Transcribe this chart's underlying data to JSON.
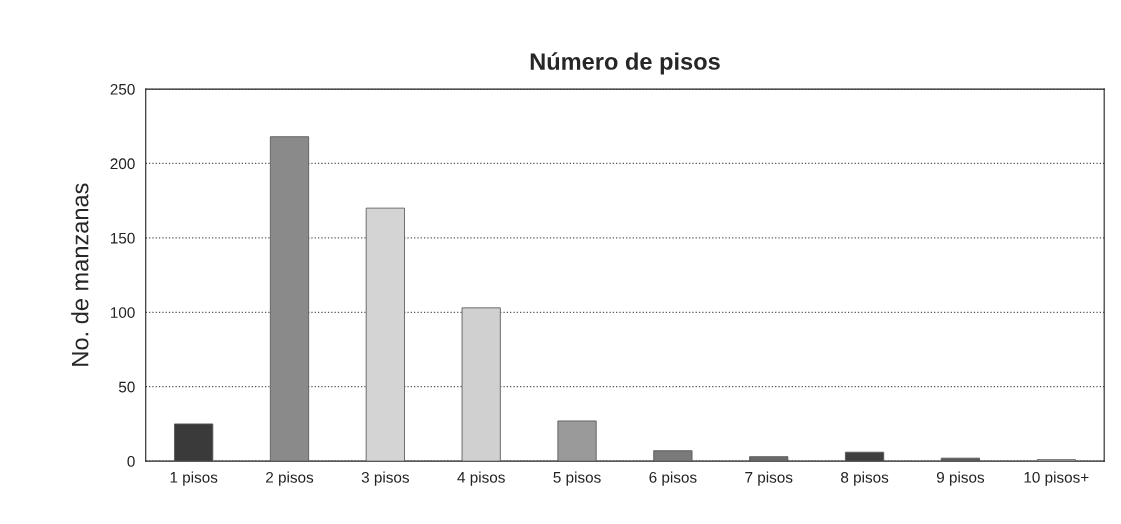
{
  "chart_data": {
    "type": "bar",
    "title": "Número de pisos",
    "ylabel": "No. de manzanas",
    "categories": [
      "1 pisos",
      "2 pisos",
      "3 pisos",
      "4 pisos",
      "5 pisos",
      "6 pisos",
      "7 pisos",
      "8 pisos",
      "9 pisos",
      "10 pisos+"
    ],
    "values": [
      25,
      218,
      170,
      103,
      27,
      7,
      3,
      6,
      2,
      1
    ],
    "colors": [
      "#3a3a3a",
      "#8a8a8a",
      "#d4d4d4",
      "#d0d0d0",
      "#9a9a9a",
      "#7a7a7a",
      "#6a6a6a",
      "#3f3f3f",
      "#5a5a5a",
      "#b0b0b0"
    ],
    "ylim": [
      0,
      250
    ],
    "yticks": [
      0,
      50,
      100,
      150,
      200,
      250
    ],
    "grid": "y"
  }
}
